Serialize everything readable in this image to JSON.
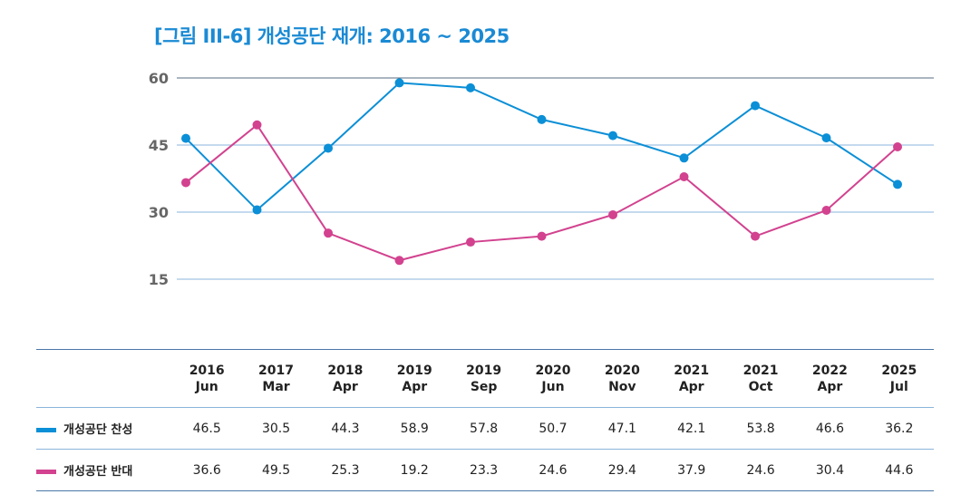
{
  "title": "[그림 III-6] 개성공단 재개: 2016 ~ 2025",
  "chart_data": {
    "type": "line",
    "title": "[그림 III-6] 개성공단 재개: 2016 ~ 2025",
    "categories": [
      [
        "2016",
        "Jun"
      ],
      [
        "2017",
        "Mar"
      ],
      [
        "2018",
        "Apr"
      ],
      [
        "2019",
        "Apr"
      ],
      [
        "2019",
        "Sep"
      ],
      [
        "2020",
        "Jun"
      ],
      [
        "2020",
        "Nov"
      ],
      [
        "2021",
        "Apr"
      ],
      [
        "2021",
        "Oct"
      ],
      [
        "2022",
        "Apr"
      ],
      [
        "2025",
        "Jul"
      ]
    ],
    "yticks": [
      15,
      30,
      45,
      60
    ],
    "ylim": [
      15,
      60
    ],
    "grid": true,
    "legend": "table-bottom",
    "series": [
      {
        "name": "개성공단 찬성",
        "color": "#0b8fd6",
        "values": [
          46.5,
          30.5,
          44.3,
          58.9,
          57.8,
          50.7,
          47.1,
          42.1,
          53.8,
          46.6,
          36.2
        ]
      },
      {
        "name": "개성공단 반대",
        "color": "#d2428f",
        "values": [
          36.6,
          49.5,
          25.3,
          19.2,
          23.3,
          24.6,
          29.4,
          37.9,
          24.6,
          30.4,
          44.6
        ]
      }
    ]
  }
}
